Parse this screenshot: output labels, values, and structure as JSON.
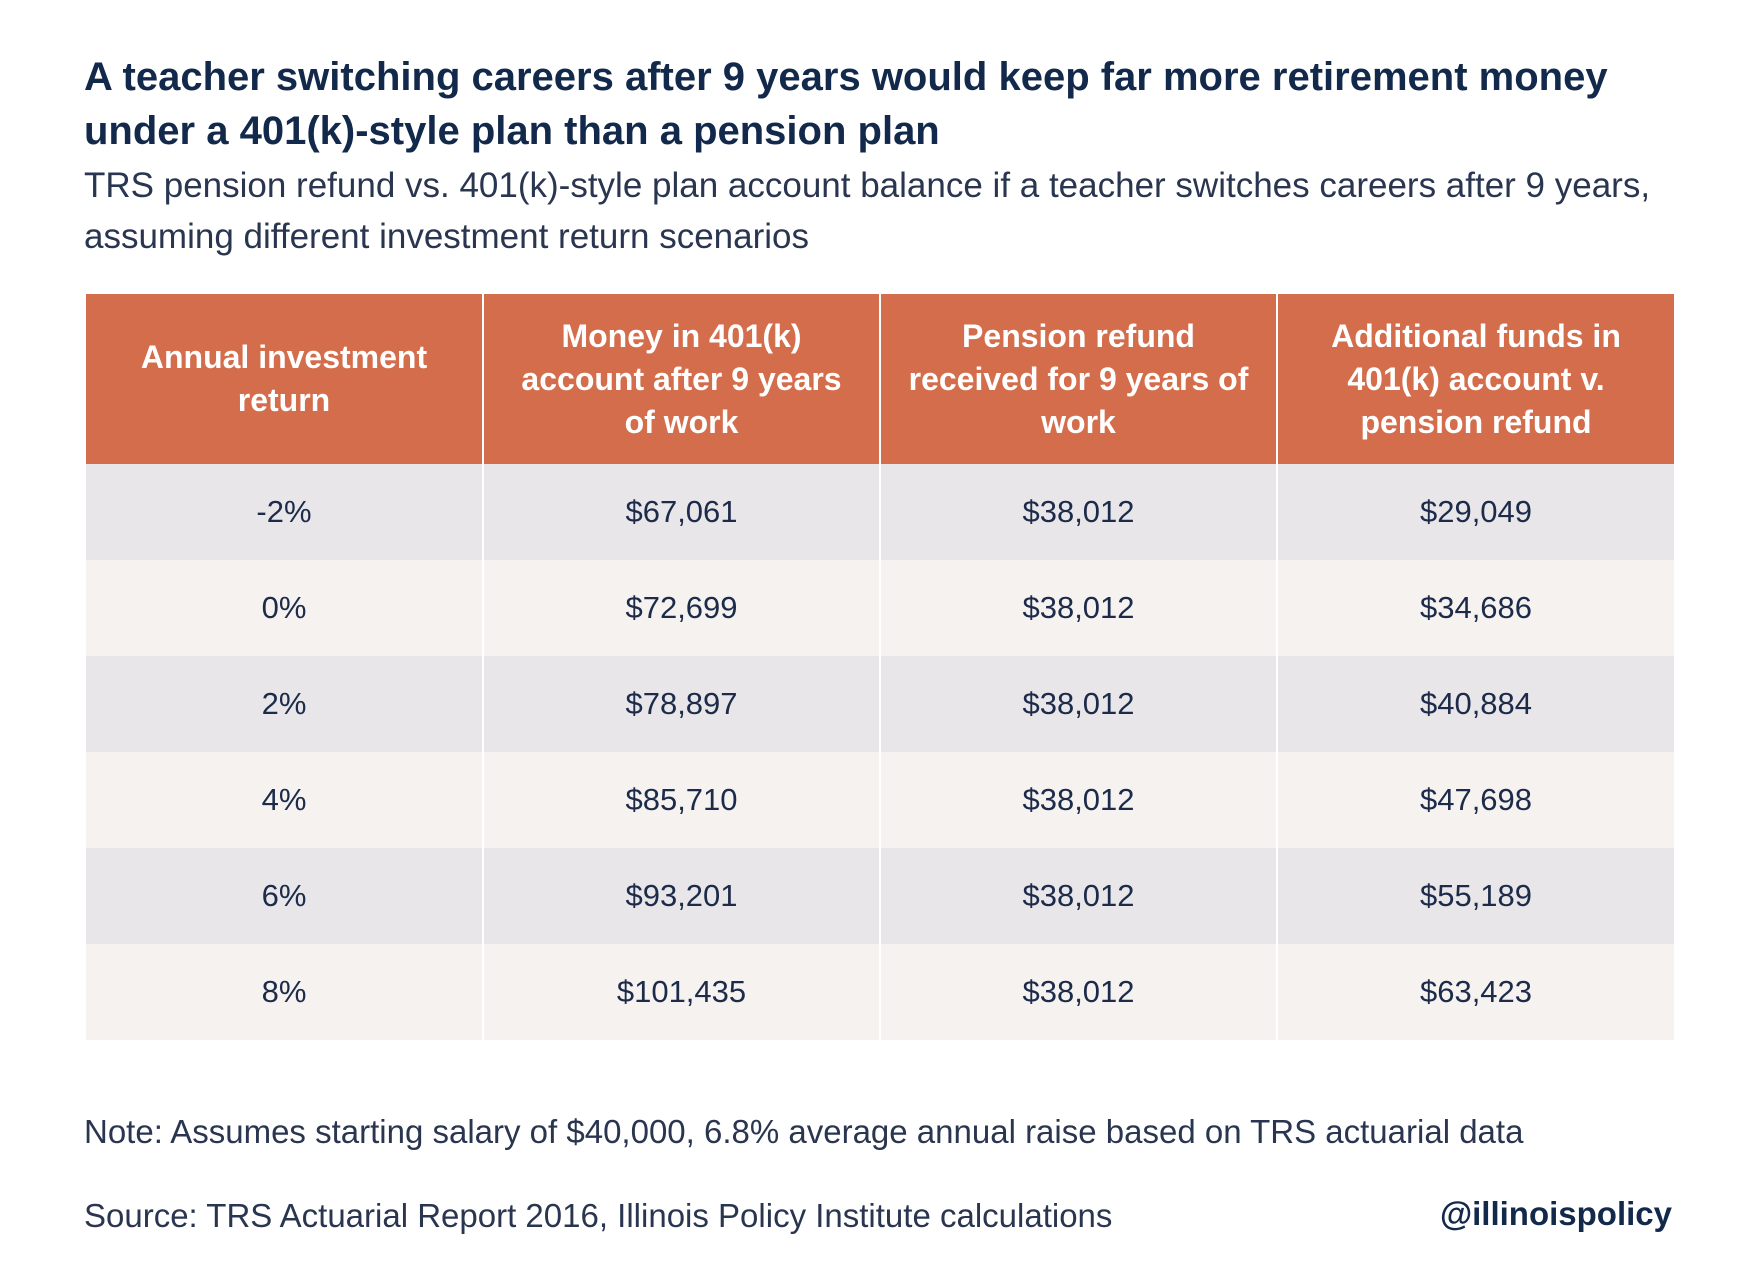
{
  "title": "A teacher switching careers after 9 years would keep far more retirement money under a 401(k)-style plan than a pension plan",
  "subtitle": "TRS pension refund vs. 401(k)-style plan account balance if a teacher switches careers after 9 years, assuming different investment return scenarios",
  "colors": {
    "header_bg": "#d36d4b",
    "row_odd": "#e8e6e8",
    "row_even": "#f5f2ef",
    "text": "#1d2b4a"
  },
  "chart_data": {
    "type": "table",
    "columns": [
      "Annual investment return",
      "Money in 401(k) account after 9 years of work",
      "Pension refund received for 9 years of work",
      "Additional funds in 401(k) account v. pension refund"
    ],
    "rows": [
      [
        "-2%",
        "$67,061",
        "$38,012",
        "$29,049"
      ],
      [
        "0%",
        "$72,699",
        "$38,012",
        "$34,686"
      ],
      [
        "2%",
        "$78,897",
        "$38,012",
        "$40,884"
      ],
      [
        "4%",
        "$85,710",
        "$38,012",
        "$47,698"
      ],
      [
        "6%",
        "$93,201",
        "$38,012",
        "$55,189"
      ],
      [
        "8%",
        "$101,435",
        "$38,012",
        "$63,423"
      ]
    ]
  },
  "note": "Note: Assumes starting salary of $40,000, 6.8% average annual raise based on TRS actuarial data",
  "source": "Source: TRS Actuarial Report 2016, Illinois Policy Institute calculations",
  "handle": "@illinoispolicy"
}
